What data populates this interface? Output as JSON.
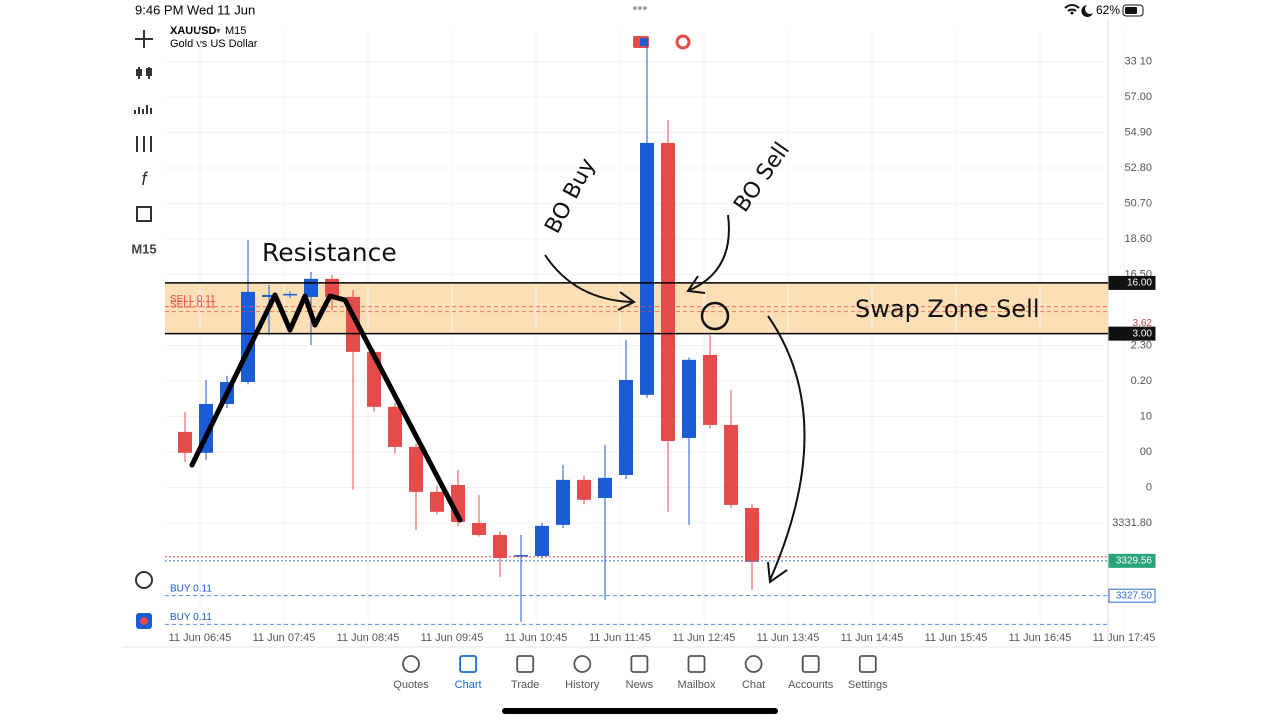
{
  "status_bar": {
    "time": "9:46 PM",
    "date": "Wed 11 Jun",
    "battery": "62%"
  },
  "header": {
    "symbol": "XAUUSD",
    "timeframe": "M15",
    "description": "Gold vs US Dollar"
  },
  "toolbar": {
    "timeframe": "M15"
  },
  "chart": {
    "ylim": [
      3325.47,
      3360.96
    ],
    "price_ticks": [
      {
        "value": 3359.1,
        "label": "33   10"
      },
      {
        "value": 3357.0,
        "label": "57.00"
      },
      {
        "value": 3354.9,
        "label": "54.90"
      },
      {
        "value": 3352.8,
        "label": "52.80"
      },
      {
        "value": 3350.7,
        "label": "50.70"
      },
      {
        "value": 3348.6,
        "label": "18.60"
      },
      {
        "value": 3346.5,
        "label": "16.50"
      },
      {
        "value": 3342.3,
        "label": "2.30"
      },
      {
        "value": 3340.2,
        "label": "0.20"
      },
      {
        "value": 3338.1,
        "label": "10"
      },
      {
        "value": 3336.0,
        "label": "00"
      },
      {
        "value": 3333.9,
        "label": "0"
      },
      {
        "value": 3331.8,
        "label": "3331.80"
      }
    ],
    "time_labels": [
      "11 Jun 06:45",
      "11 Jun 07:45",
      "11 Jun 08:45",
      "11 Jun 09:45",
      "11 Jun 10:45",
      "11 Jun 11:45",
      "11 Jun 12:45",
      "11 Jun 13:45",
      "11 Jun 14:45",
      "11 Jun 15:45",
      "11 Jun 16:45",
      "11 Jun 17:45"
    ],
    "candles": [
      {
        "open": 3337.19,
        "high": 3338.37,
        "low": 3335.41,
        "close": 3335.95
      },
      {
        "open": 3335.95,
        "high": 3340.26,
        "low": 3335.53,
        "close": 3338.84
      },
      {
        "open": 3338.84,
        "high": 3340.5,
        "low": 3338.6,
        "close": 3340.14
      },
      {
        "open": 3340.14,
        "high": 3348.54,
        "low": 3340.0,
        "close": 3345.47
      },
      {
        "open": 3345.17,
        "high": 3345.88,
        "low": 3342.92,
        "close": 3345.29
      },
      {
        "open": 3345.29,
        "high": 3345.5,
        "low": 3345.1,
        "close": 3345.35
      },
      {
        "open": 3345.17,
        "high": 3346.65,
        "low": 3342.33,
        "close": 3346.24
      },
      {
        "open": 3346.24,
        "high": 3346.47,
        "low": 3344.4,
        "close": 3345.17
      },
      {
        "open": 3345.17,
        "high": 3345.59,
        "low": 3333.76,
        "close": 3341.92
      },
      {
        "open": 3341.92,
        "high": 3342.1,
        "low": 3338.4,
        "close": 3338.67
      },
      {
        "open": 3338.67,
        "high": 3338.9,
        "low": 3335.9,
        "close": 3336.3
      },
      {
        "open": 3336.3,
        "high": 3336.5,
        "low": 3331.39,
        "close": 3333.64
      },
      {
        "open": 3333.64,
        "high": 3334.0,
        "low": 3332.3,
        "close": 3332.46
      },
      {
        "open": 3334.05,
        "high": 3334.94,
        "low": 3331.6,
        "close": 3331.86
      },
      {
        "open": 3331.8,
        "high": 3333.46,
        "low": 3331.0,
        "close": 3331.09
      },
      {
        "open": 3331.09,
        "high": 3331.3,
        "low": 3328.61,
        "close": 3329.73
      },
      {
        "open": 3329.85,
        "high": 3331.09,
        "low": 3325.95,
        "close": 3329.9
      },
      {
        "open": 3329.85,
        "high": 3331.8,
        "low": 3329.7,
        "close": 3331.63
      },
      {
        "open": 3331.69,
        "high": 3335.24,
        "low": 3331.5,
        "close": 3334.35
      },
      {
        "open": 3334.35,
        "high": 3334.6,
        "low": 3332.9,
        "close": 3333.17
      },
      {
        "open": 3333.28,
        "high": 3336.42,
        "low": 3327.25,
        "close": 3334.47
      },
      {
        "open": 3334.64,
        "high": 3342.63,
        "low": 3334.4,
        "close": 3340.26
      },
      {
        "open": 3339.38,
        "high": 3360.37,
        "low": 3339.2,
        "close": 3354.28
      },
      {
        "open": 3354.28,
        "high": 3355.64,
        "low": 3332.46,
        "close": 3336.65
      },
      {
        "open": 3336.83,
        "high": 3341.6,
        "low": 3331.69,
        "close": 3341.45
      },
      {
        "open": 3341.74,
        "high": 3342.92,
        "low": 3337.4,
        "close": 3337.6
      },
      {
        "open": 3337.6,
        "high": 3339.67,
        "low": 3332.7,
        "close": 3332.87
      },
      {
        "open": 3332.69,
        "high": 3332.9,
        "low": 3327.84,
        "close": 3329.5
      }
    ],
    "zone": {
      "label": "Swap Zone Sell",
      "top": 3346.0,
      "bottom": 3343.0
    },
    "badges": [
      {
        "value": 3346.0,
        "label": "16.00",
        "style": "dark"
      },
      {
        "value": 3343.0,
        "label": "3.00",
        "style": "dark"
      },
      {
        "value": 3343.62,
        "label": "3.62",
        "style": "plain"
      },
      {
        "value": 3329.56,
        "label": "3329.56",
        "style": "bid"
      },
      {
        "value": 3327.5,
        "label": "3327.50",
        "style": "order"
      }
    ],
    "ask_line": 3329.8,
    "orders": [
      {
        "label": "SELL 0.11",
        "price": 3344.6,
        "color": "#e54b4b"
      },
      {
        "label": "SELL 0.11",
        "price": 3344.3,
        "color": "#e54b4b"
      },
      {
        "label": "BUY 0.11",
        "price": 3327.5,
        "color": "#1a5bd6"
      },
      {
        "label": "BUY 0.11",
        "price": 3325.8,
        "color": "#1a5bd6"
      }
    ],
    "annotations": {
      "resistance": "Resistance",
      "bo_buy": "BO Buy",
      "bo_sell": "BO Sell"
    },
    "colors": {
      "up": "#1a5bd6",
      "down": "#e54b4b"
    }
  },
  "tabs": [
    "Quotes",
    "Chart",
    "Trade",
    "History",
    "News",
    "Mailbox",
    "Chat",
    "Accounts",
    "Settings"
  ],
  "active_tab": 1
}
